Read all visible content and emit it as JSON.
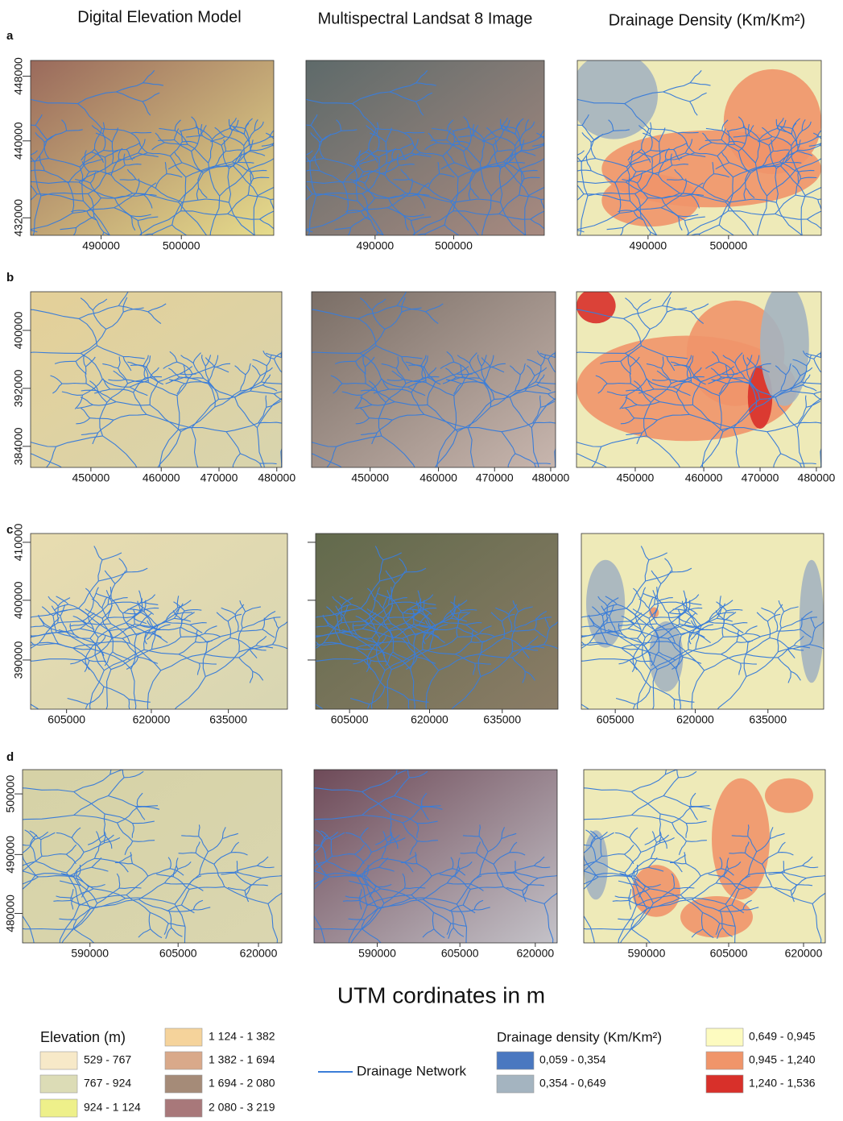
{
  "columns": [
    "Digital Elevation Model",
    "Multispectral Landsat 8 Image",
    "Drainage Density (Km/Km²)"
  ],
  "rows": [
    {
      "label": "a",
      "yticks": [
        "448000",
        "440000",
        "432000"
      ],
      "xticks": [
        "490000",
        "500000"
      ]
    },
    {
      "label": "b",
      "yticks": [
        "400000",
        "392000",
        "384000"
      ],
      "xticks": [
        "450000",
        "460000",
        "470000",
        "480000"
      ]
    },
    {
      "label": "c",
      "yticks": [
        "410000",
        "400000",
        "390000"
      ],
      "xticks": [
        "605000",
        "620000",
        "635000"
      ]
    },
    {
      "label": "d",
      "yticks": [
        "500000",
        "490000",
        "480000"
      ],
      "xticks": [
        "590000",
        "605000",
        "620000"
      ]
    }
  ],
  "axis_title": "UTM cordinates in m",
  "legend": {
    "elevation": {
      "title": "Elevation (m)",
      "classes": [
        {
          "label": "529 - 767",
          "color": "#f7e9c8"
        },
        {
          "label": "767 - 924",
          "color": "#dcdcb6"
        },
        {
          "label": "924 - 1 124",
          "color": "#eef08a"
        },
        {
          "label": "1 124 - 1 382",
          "color": "#f5d39b"
        },
        {
          "label": "1 382 - 1 694",
          "color": "#d9a98a"
        },
        {
          "label": "1 694 - 2 080",
          "color": "#a58b78"
        },
        {
          "label": "2 080 - 3 219",
          "color": "#a8787a"
        }
      ]
    },
    "network": {
      "label": "Drainage Network",
      "color": "#3b7dd8"
    },
    "density": {
      "title": "Drainage density (Km/Km²)",
      "classes": [
        {
          "label": "0,059 - 0,354",
          "color": "#4a78c0"
        },
        {
          "label": "0,354 - 0,649",
          "color": "#a4b4c0"
        },
        {
          "label": "0,649 - 0,945",
          "color": "#fdfbc0"
        },
        {
          "label": "0,945 - 1,240",
          "color": "#f0956a"
        },
        {
          "label": "1,240 - 1,536",
          "color": "#d8302a"
        }
      ]
    }
  }
}
